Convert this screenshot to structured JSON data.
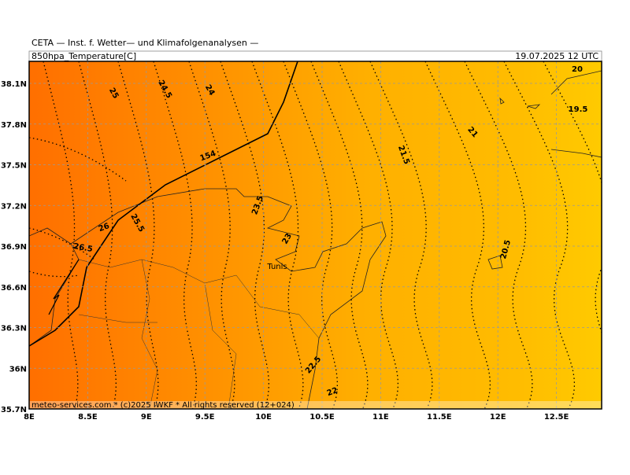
{
  "header": {
    "title": "CETA — Inst. f. Wetter— und Klimafolgenanalysen —",
    "variable": "850hpa_Temperature[C]",
    "datetime": "19.07.2025 12 UTC"
  },
  "footer": {
    "credit": "meteo-services.com * (c)2025 IWKF * All rights reserved (12+024)"
  },
  "axes": {
    "lat_labels": [
      "38.1N",
      "37.8N",
      "37.5N",
      "37.2N",
      "36.9N",
      "36.6N",
      "36.3N",
      "36N",
      "35.7N"
    ],
    "lon_labels": [
      "8E",
      "8.5E",
      "9E",
      "9.5E",
      "10E",
      "10.5E",
      "11E",
      "11.5E",
      "12E",
      "12.5E"
    ]
  },
  "map": {
    "place_labels": [
      "Tunis"
    ],
    "contour_labels": [
      "25",
      "24.5",
      "24",
      "21.5",
      "21",
      "20",
      "19.5",
      "154",
      "23.5",
      "25.5",
      "26",
      "26.5",
      "23",
      "22.5",
      "22",
      "20.5"
    ]
  }
}
